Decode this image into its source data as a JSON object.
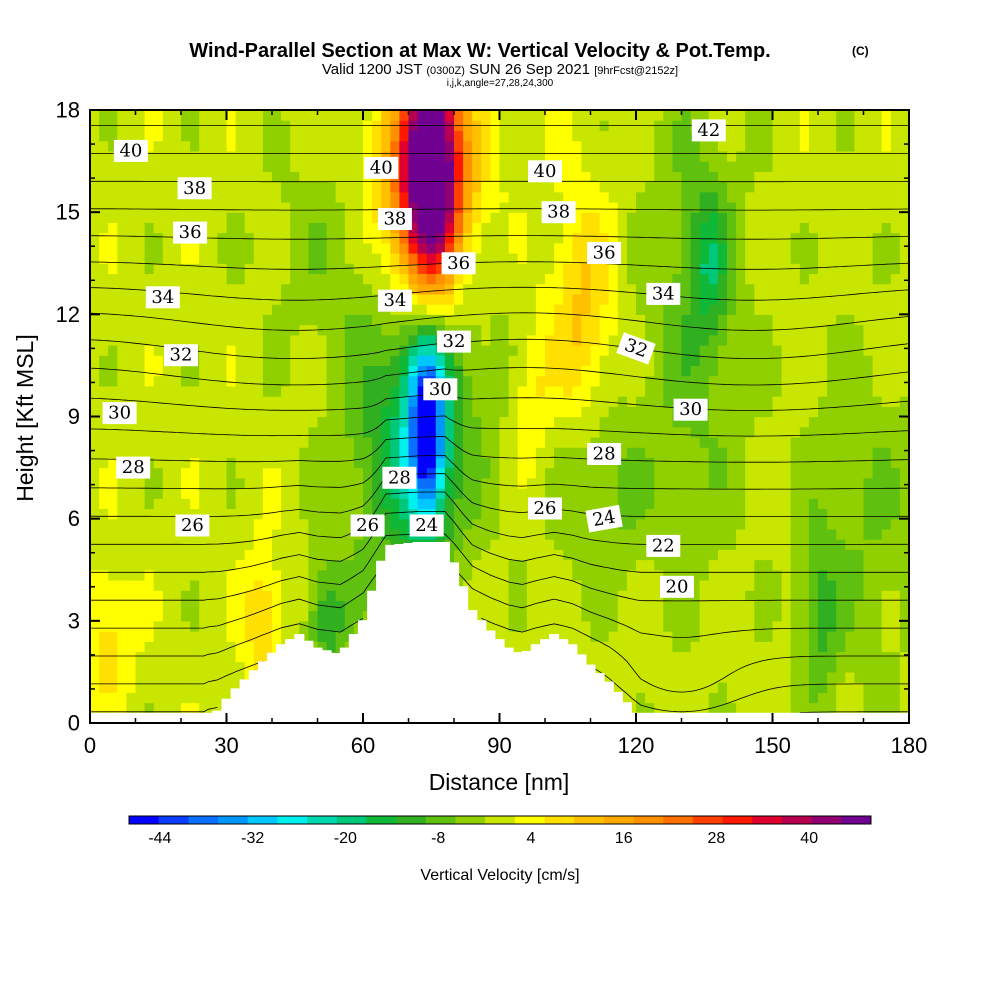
{
  "chart_data": {
    "type": "heatmap",
    "title": "Wind-Parallel Section at Max W: Vertical Velocity & Pot.Temp.",
    "title_mark": "(C)",
    "subtitle_parts": [
      "Valid 1200 JST",
      "(0300Z)",
      "SUN 26 Sep 2021",
      "[9hrFcst@2152z]"
    ],
    "subtitle_small": "i,j,k,angle=27,28,24,300",
    "xlabel": "Distance [nm]",
    "ylabel": "Height [Kft MSL]",
    "xlim": [
      0,
      180
    ],
    "ylim": [
      0,
      18
    ],
    "x_ticks": [
      0,
      30,
      60,
      90,
      120,
      150,
      180
    ],
    "y_ticks": [
      0,
      3,
      6,
      9,
      12,
      15,
      18
    ],
    "colorbar": {
      "label": "Vertical Velocity [cm/s]",
      "levels": [
        -48,
        -44,
        -40,
        -36,
        -32,
        -28,
        -24,
        -20,
        -16,
        -12,
        -8,
        -4,
        0,
        4,
        8,
        12,
        16,
        20,
        24,
        28,
        32,
        36,
        40,
        44,
        48
      ],
      "colors": [
        "#0000ff",
        "#0a3cff",
        "#0a6eff",
        "#0096ff",
        "#00c8ff",
        "#00f0f0",
        "#00d8b0",
        "#00c87a",
        "#10b838",
        "#30b020",
        "#60c010",
        "#90d000",
        "#c8e600",
        "#ffff00",
        "#ffe000",
        "#ffc000",
        "#ffa800",
        "#ff9000",
        "#ff7000",
        "#ff4000",
        "#ff1800",
        "#e00030",
        "#b80050",
        "#900070",
        "#700090"
      ],
      "tick_labels": [
        -44,
        -32,
        -20,
        -8,
        4,
        16,
        28,
        40
      ]
    },
    "fields": {
      "background_w": 2,
      "anomalies": [
        {
          "x": 75,
          "y": 16.8,
          "sx": 4,
          "sy": 2.5,
          "w": 47
        },
        {
          "x": 73,
          "y": 14.5,
          "sx": 7,
          "sy": 2.2,
          "w": 22
        },
        {
          "x": 75,
          "y": 16.5,
          "sx": 9,
          "sy": 1.8,
          "w": 12
        },
        {
          "x": 108,
          "y": 12,
          "sx": 5,
          "sy": 2.5,
          "w": 11
        },
        {
          "x": 97,
          "y": 9.5,
          "sx": 3,
          "sy": 1.5,
          "w": 7
        },
        {
          "x": 38,
          "y": 3,
          "sx": 3,
          "sy": 1.5,
          "w": 10
        },
        {
          "x": 4,
          "y": 2.5,
          "sx": 4,
          "sy": 1.5,
          "w": 8
        },
        {
          "x": 74,
          "y": 8.6,
          "sx": 2.5,
          "sy": 1.7,
          "w": -34
        },
        {
          "x": 74,
          "y": 8.8,
          "sx": 5,
          "sy": 2.6,
          "w": -14
        },
        {
          "x": 74,
          "y": 10,
          "sx": 11,
          "sy": 4,
          "w": -9
        },
        {
          "x": 52,
          "y": 3,
          "sx": 3,
          "sy": 1.2,
          "w": -13
        },
        {
          "x": 136,
          "y": 13.5,
          "sx": 3,
          "sy": 1.5,
          "w": -11
        },
        {
          "x": 133,
          "y": 12,
          "sx": 8,
          "sy": 5,
          "w": -8
        },
        {
          "x": 112,
          "y": 6.8,
          "sx": 7,
          "sy": 2,
          "w": -8
        },
        {
          "x": 160,
          "y": 3,
          "sx": 3,
          "sy": 1.7,
          "w": -10
        },
        {
          "x": 170,
          "y": 6,
          "sx": 10,
          "sy": 3.5,
          "w": -6
        },
        {
          "x": 50,
          "y": 14,
          "sx": 10,
          "sy": 2,
          "w": -4
        },
        {
          "x": 65,
          "y": 7.5,
          "sx": 8,
          "sy": 3.5,
          "w": -7
        }
      ],
      "terrain": [
        [
          25,
          0
        ],
        [
          26,
          0.2
        ],
        [
          28,
          0.35
        ],
        [
          30,
          0.7
        ],
        [
          32,
          1.0
        ],
        [
          35,
          1.4
        ],
        [
          38,
          1.8
        ],
        [
          42,
          2.3
        ],
        [
          46,
          2.6
        ],
        [
          50,
          2.2
        ],
        [
          55,
          2.0
        ],
        [
          60,
          3.0
        ],
        [
          63,
          4.3
        ],
        [
          65,
          5.2
        ],
        [
          72,
          5.3
        ],
        [
          78,
          5.3
        ],
        [
          80,
          4.7
        ],
        [
          82,
          4.0
        ],
        [
          84,
          3.3
        ],
        [
          88,
          2.7
        ],
        [
          92,
          2.2
        ],
        [
          95,
          2.0
        ],
        [
          98,
          2.3
        ],
        [
          102,
          2.6
        ],
        [
          106,
          2.3
        ],
        [
          110,
          1.7
        ],
        [
          114,
          1.2
        ],
        [
          118,
          0.6
        ],
        [
          120,
          0.2
        ],
        [
          121,
          0
        ]
      ]
    },
    "theta_contours": {
      "levels": [
        20,
        21,
        22,
        23,
        24,
        25,
        26,
        27,
        28,
        29,
        30,
        31,
        32,
        33,
        34,
        35,
        36,
        37,
        38,
        39,
        40,
        41,
        42
      ],
      "labeled": [
        20,
        22,
        24,
        26,
        28,
        30,
        32,
        34,
        36,
        38,
        40,
        42
      ]
    },
    "contour_labels": [
      {
        "text": "40",
        "x": 9,
        "y": 16.8,
        "angle": 0
      },
      {
        "text": "38",
        "x": 23,
        "y": 15.7,
        "angle": 0
      },
      {
        "text": "36",
        "x": 22,
        "y": 14.4,
        "angle": 0
      },
      {
        "text": "34",
        "x": 16,
        "y": 12.5,
        "angle": 0
      },
      {
        "text": "32",
        "x": 20,
        "y": 10.8,
        "angle": 0
      },
      {
        "text": "30",
        "x": 6.5,
        "y": 9.1,
        "angle": 0
      },
      {
        "text": "28",
        "x": 9.5,
        "y": 7.5,
        "angle": 0
      },
      {
        "text": "26",
        "x": 22.5,
        "y": 5.8,
        "angle": 0
      },
      {
        "text": "40",
        "x": 64,
        "y": 16.3,
        "angle": 0
      },
      {
        "text": "38",
        "x": 67,
        "y": 14.8,
        "angle": 0
      },
      {
        "text": "36",
        "x": 81,
        "y": 13.5,
        "angle": 0
      },
      {
        "text": "34",
        "x": 67,
        "y": 12.4,
        "angle": 0
      },
      {
        "text": "32",
        "x": 80,
        "y": 11.2,
        "angle": 0
      },
      {
        "text": "30",
        "x": 77,
        "y": 9.8,
        "angle": 0
      },
      {
        "text": "28",
        "x": 68,
        "y": 7.2,
        "angle": 0
      },
      {
        "text": "26",
        "x": 61,
        "y": 5.8,
        "angle": 0
      },
      {
        "text": "24",
        "x": 74,
        "y": 5.8,
        "angle": 0
      },
      {
        "text": "40",
        "x": 100,
        "y": 16.2,
        "angle": 0
      },
      {
        "text": "38",
        "x": 103,
        "y": 15,
        "angle": 0
      },
      {
        "text": "36",
        "x": 113,
        "y": 13.8,
        "angle": 0
      },
      {
        "text": "34",
        "x": 126,
        "y": 12.6,
        "angle": 0
      },
      {
        "text": "32",
        "x": 120,
        "y": 11,
        "angle": 20
      },
      {
        "text": "30",
        "x": 132,
        "y": 9.2,
        "angle": 0
      },
      {
        "text": "28",
        "x": 113,
        "y": 7.9,
        "angle": 0
      },
      {
        "text": "26",
        "x": 100,
        "y": 6.3,
        "angle": 0
      },
      {
        "text": "24",
        "x": 113,
        "y": 6,
        "angle": -10
      },
      {
        "text": "22",
        "x": 126,
        "y": 5.2,
        "angle": 0
      },
      {
        "text": "20",
        "x": 129,
        "y": 4,
        "angle": 0
      },
      {
        "text": "42",
        "x": 136,
        "y": 17.4,
        "angle": 0
      }
    ]
  }
}
